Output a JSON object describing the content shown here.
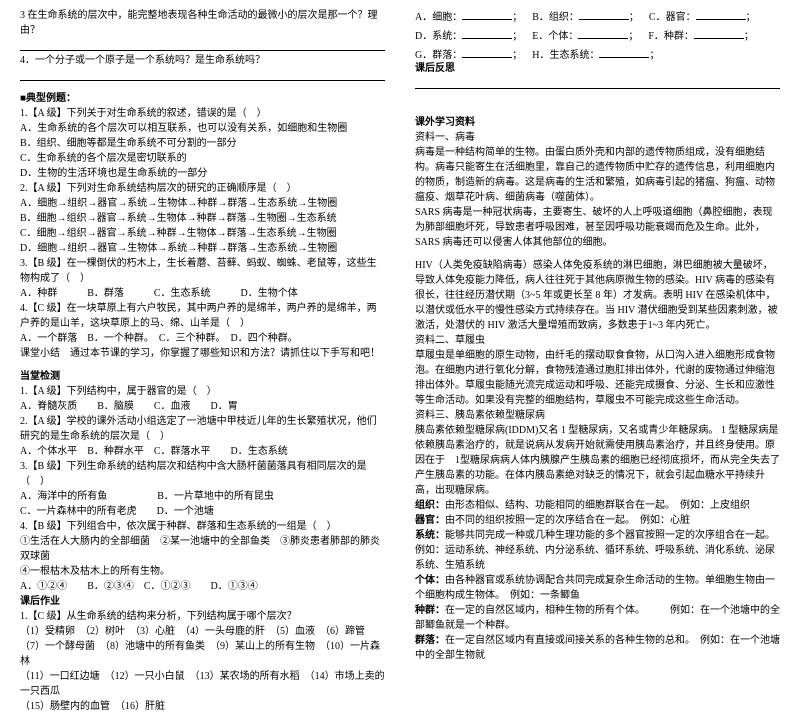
{
  "left": {
    "q3": "3 在生命系统的层次中，能完整地表现各种生命活动的最微小的层次是那一个？理由？",
    "q4": "4．一个分子或一个原子是一个系统吗？是生命系统吗？",
    "section1": "■典型例题：",
    "a1": "1.【A 级】下列关于对生命系统的叙述，错误的是（　）",
    "a1a": "A．生命系统的各个层次可以相互联系，也可以没有关系，如细胞和生物圈",
    "a1b": "B．组织、细胞等都是生命系统不可分割的一部分",
    "a1c": "C．生命系统的各个层次是密切联系的",
    "a1d": "D．生物的生活环境也是生命系统的一部分",
    "a2": "2.【A 级】下列对生命系统结构层次的研究的正确顺序是（　）",
    "a2a": "A．细胞→组织→器官→系统→生物体→种群→群落→生态系统→生物圈",
    "a2b": "B．细胞→组织→器官→系统→生物体→种群→群落→生物圈→生态系统",
    "a2c": "C．细胞→组织→器官→系统→种群→生物体→群落→生态系统→生物圈",
    "a2d": "D．细胞→组织→器官→生物体→系统→种群→群落→生态系统→生物圈",
    "a3": "3.【B 级】在一棵倒伏的朽木上，生长着蘑、苔藓、蚂蚁、蜘蛛、老鼠等，这些生物构成了（　）",
    "a3opts": "A．种群　　　B．群落　　　C．生态系统　　　D．生物个体",
    "a4": "4.【C 级】在一块草原上有六户牧民，其中两户养的是绵羊，两户养的是绵羊，两户养的是山羊，这块草原上的马、绵、山羊是（　）",
    "a4opts": "A．一个群落　B．一个种群。　C．三个种群。　D．四个种群。",
    "summary": "课堂小结　通过本节课的学习，你掌握了哪些知识和方法？请抓住以下手写和吧！",
    "check_title": "当堂检测",
    "c1": "1.【A 级】下列结构中，属于器官的是（　）",
    "c1opts": "A．脊髓灰质　　B．脑膜　　C．血液　　D．胃",
    "c2": "2.【A 级】学校的课外活动小组选定了一池塘中甲枝近儿年的生长繁殖状况，他们研究的是生命系统的层次是（　）",
    "c2opts": "A．个体水平　B．种群水平　C．群落水平　　D．生态系统",
    "c3": "3.【B 级】下列生命系统的结构层次和结构中含大肠杆菌菌落具有相同层次的是（　）",
    "c3a": "A．海洋中的所有鱼　　　　　B．一片草地中的所有昆虫",
    "c3b": "C．一片森林中的所有老虎　　D．一个池塘",
    "c4": "4.【B 级】下列组合中，依次属于种群、群落和生态系统的一组是（　）",
    "c4a": "①生活在人大肠内的全部细菌　②某一池塘中的全部鱼类　③肺炎患者肺部的肺炎双球菌",
    "c4b": "④一根枯木及枯木上的所有生物。",
    "c4opts": "A．①②④　　B．②③④　C．①②③　　D．①③④",
    "hw_title": "课后作业",
    "hw1": "1.【C 级】从生命系统的结构来分析，下列结构属于哪个层次？",
    "hw1a": "（1）受精卵　（2）树叶　（3）心脏　（4）一头母鹿的肝　（5）血液　（6）蹄管",
    "hw1b": "（7）一个酵母菌　（8）池塘中的所有鱼类　（9）某山上的所有生物　（10）一片森林",
    "hw1c": "（11）一口红边塘　（12）一只小白鼠　（13）某农场的所有水稻　（14）市场上卖的一只西瓜",
    "hw1d": "（15）肠壁内的血管　（16）肝脏"
  },
  "right": {
    "fills": [
      {
        "k": "A",
        "v": "细胞："
      },
      {
        "k": "B",
        "v": "组织："
      },
      {
        "k": "C",
        "v": "器官："
      },
      {
        "k": "D",
        "v": "系统："
      },
      {
        "k": "E",
        "v": "个体："
      },
      {
        "k": "F",
        "v": "种群："
      },
      {
        "k": "G",
        "v": "群落："
      },
      {
        "k": "H",
        "v": "生态系统："
      }
    ],
    "reflect": "课后反思",
    "ext_title": "课外学习资料",
    "r1t": "资料一、病毒",
    "r1a": "病毒是一种结构简单的生物。由蛋白质外壳和内部的遗传物质组成，没有细胞结构。病毒只能寄生在活细胞里，靠自己的遗传物质中贮存的遗传信息，利用细胞内的物质，制造新的病毒。这是病毒的生活和繁殖，如病毒引起的猪瘟、狗瘟、动物瘟疫、烟草花叶病、细菌病毒（噬菌体）。",
    "r1b": "SARS 病毒是一种冠状病毒，主要寄生、破坏的人上呼吸道细胞（鼻腔细胞，表现为肺部细胞坏死，导致患者呼吸困难，甚至因呼吸功能衰竭而危及生命。此外，SARS 病毒还可以侵害人体其他部位的细胞。",
    "r1c": "HIV（人类免疫缺陷病毒）感染人体免疫系统的淋巴细胞，淋巴细胞被大量破坏，导致人体免疫能力降低，病人往往死于其他病原微生物的感染。HIV 病毒的感染有很长，往往经历潜伏期（3~5 年或更长至 8 年）才发病。表明 HIV 在感染机体中，以潜伏或低水平的慢性感染方式持续存在。当 HIV 潜伏细胞受到某些因素刺激，被激活，处潜伏的 HIV 激活大量增殖而致病，多数患于1~3 年内死亡。",
    "r2t": "资料二、草履虫",
    "r2a": "草履虫是单细胞的原生动物，由纤毛的摆动取食食物，从口沟入进入细胞形成食物泡。在细胞内进行氧化分解，食物残渣通过胞肛排出体外，代谢的废物通过伸缩泡排出体外。草履虫能随光流完成运动和呼吸、还能完成摄食、分泌、生长和应激性等生命活动。如果没有完整的细胞结构，草履虫不可能完成这些生命活动。",
    "r3t": "资料三、胰岛素依赖型糖尿病",
    "r3a": "胰岛素依赖型糖尿病(IDDM)又名 1 型糖尿病，又名或青少年糖尿病。 1 型糖尿病是依赖胰岛素治疗的，就是说病从发病开始就需使用胰岛素治疗，并且终身使用。原因在于　1型糖尿病病人体内胰腺产生胰岛素的细胞已经彻底损坏，而从完全失去了产生胰岛素的功能。在体内胰岛素绝对缺乏的情况下，就会引起血糖水平持续升高，出现糖尿病。",
    "org_l": "组织：",
    "org_r": "由形态相似、结构、功能相同的细胞群联合在一起。　例如：上皮组织",
    "qg_l": "器官：",
    "qg_r": "由不同的组织按照一定的次序结合在一起。　例如：心脏",
    "xt_l": "系统：",
    "xt_r": "能够共同完成一种或几种生理功能的多个器官按照一定的次序组合在一起。例如：运动系统、神经系统、内分泌系统、循环系统、呼吸系统、消化系统、泌尿系统、生殖系统",
    "gt_l": "个体：",
    "gt_r": "由各种器官或系统协调配合共同完成复杂生命活动的生物。单细胞生物由一个细胞构成生物体。　例如：一条鲫鱼",
    "zq_l": "种群：",
    "zq_r": "在一定的自然区域内，相种生物的所有个体。　　　例如：在一个池塘中的全部鲫鱼就是一个种群。",
    "ql_l": "群落：",
    "ql_r": "在一定自然区域内有直接或间接关系的各种生物的总和。　例如：在一个池塘中的全部生物就"
  }
}
